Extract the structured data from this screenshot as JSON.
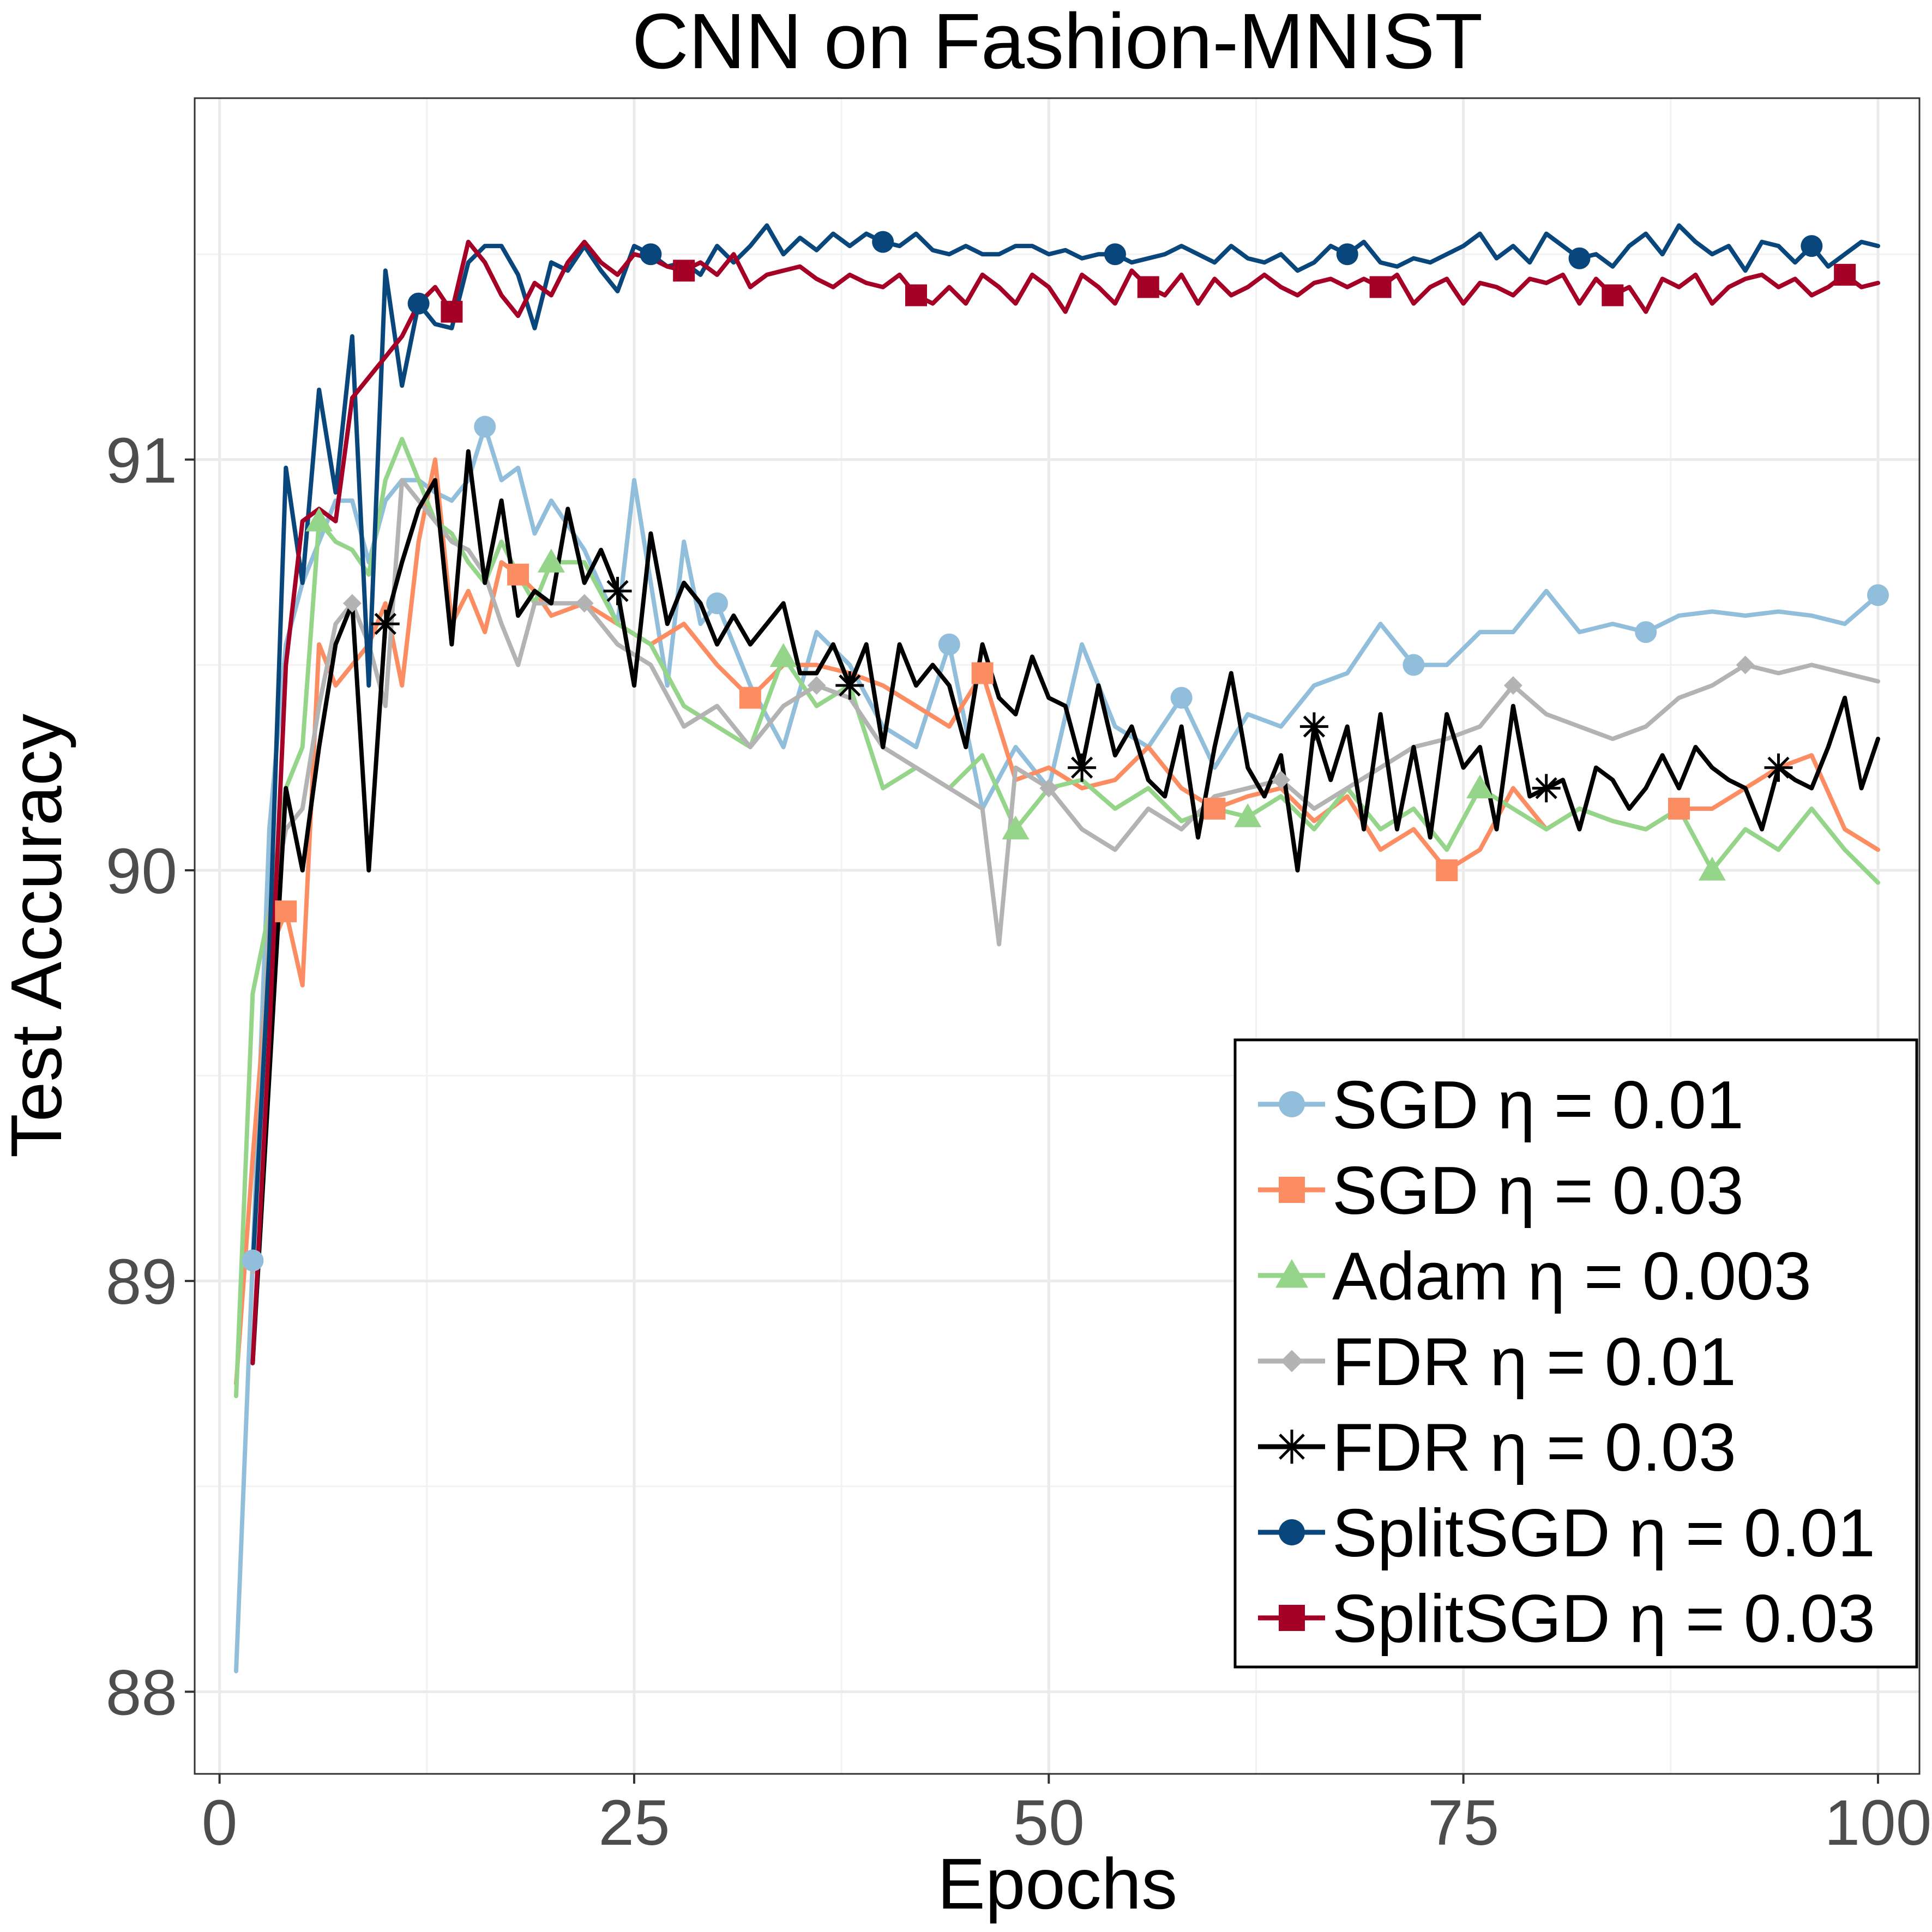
{
  "chart_data": {
    "type": "line",
    "title": "CNN on Fashion-MNIST",
    "xlabel": "Epochs",
    "ylabel": "Test Accuracy",
    "xlim": [
      -1.5,
      102.5
    ],
    "ylim": [
      87.8,
      91.88
    ],
    "x_ticks": [
      0,
      25,
      50,
      75,
      100
    ],
    "x_tick_labels": [
      "0",
      "25",
      "50",
      "75",
      "100"
    ],
    "y_ticks": [
      88,
      89,
      90,
      91
    ],
    "y_tick_labels": [
      "88",
      "89",
      "90",
      "91"
    ],
    "grid": true,
    "legend_position": "bottom-right",
    "series": [
      {
        "name": "SGD η = 0.01",
        "color": "#91BFDB",
        "marker": "circle",
        "x": [
          1,
          2,
          3,
          4,
          5,
          6,
          7,
          8,
          9,
          10,
          11,
          12,
          13,
          14,
          15,
          16,
          17,
          18,
          19,
          20,
          22,
          24,
          25,
          26,
          27,
          28,
          29,
          30,
          32,
          34,
          36,
          38,
          40,
          42,
          44,
          46,
          48,
          50,
          52,
          54,
          56,
          58,
          60,
          62,
          64,
          66,
          68,
          70,
          72,
          74,
          76,
          78,
          80,
          82,
          84,
          86,
          88,
          90,
          92,
          94,
          96,
          98,
          100
        ],
        "values": [
          88.05,
          89.05,
          90.1,
          90.55,
          90.7,
          90.8,
          90.9,
          90.9,
          90.75,
          90.9,
          90.95,
          90.95,
          90.92,
          90.9,
          90.95,
          91.08,
          90.95,
          90.98,
          90.82,
          90.9,
          90.78,
          90.6,
          90.95,
          90.7,
          90.45,
          90.8,
          90.6,
          90.65,
          90.45,
          90.3,
          90.58,
          90.5,
          90.35,
          90.3,
          90.55,
          90.15,
          90.3,
          90.2,
          90.55,
          90.35,
          90.3,
          90.42,
          90.25,
          90.38,
          90.35,
          90.45,
          90.48,
          90.6,
          90.5,
          90.5,
          90.58,
          90.58,
          90.68,
          90.58,
          90.6,
          90.58,
          90.62,
          90.63,
          90.62,
          90.63,
          90.62,
          90.6,
          90.67
        ],
        "marker_x": [
          2,
          16,
          30,
          44,
          58,
          72,
          86,
          100
        ]
      },
      {
        "name": "SGD η = 0.03",
        "color": "#FC8D62",
        "marker": "square",
        "x": [
          1,
          2,
          3,
          4,
          5,
          6,
          7,
          8,
          9,
          10,
          11,
          12,
          13,
          14,
          15,
          16,
          17,
          18,
          19,
          20,
          22,
          24,
          26,
          28,
          30,
          32,
          34,
          36,
          38,
          40,
          42,
          44,
          46,
          48,
          50,
          52,
          54,
          56,
          58,
          60,
          62,
          64,
          66,
          68,
          70,
          72,
          74,
          76,
          78,
          80,
          82,
          84,
          86,
          88,
          90,
          92,
          94,
          96,
          98,
          100
        ],
        "values": [
          88.75,
          89.3,
          89.8,
          89.9,
          89.72,
          90.55,
          90.45,
          90.5,
          90.55,
          90.65,
          90.45,
          90.8,
          91.0,
          90.6,
          90.68,
          90.58,
          90.75,
          90.72,
          90.68,
          90.62,
          90.65,
          90.6,
          90.55,
          90.6,
          90.5,
          90.42,
          90.5,
          90.5,
          90.48,
          90.45,
          90.4,
          90.35,
          90.48,
          90.22,
          90.25,
          90.2,
          90.22,
          90.3,
          90.2,
          90.15,
          90.18,
          90.2,
          90.12,
          90.18,
          90.05,
          90.1,
          90.0,
          90.05,
          90.2,
          90.1,
          90.15,
          90.12,
          90.1,
          90.15,
          90.15,
          90.2,
          90.25,
          90.28,
          90.1,
          90.05
        ],
        "marker_x": [
          4,
          18,
          32,
          46,
          60,
          74,
          88
        ]
      },
      {
        "name": "Adam η = 0.003",
        "color": "#95D58A",
        "marker": "triangle",
        "x": [
          1,
          2,
          3,
          4,
          5,
          6,
          7,
          8,
          9,
          10,
          11,
          12,
          13,
          14,
          15,
          16,
          17,
          18,
          19,
          20,
          22,
          24,
          26,
          28,
          30,
          32,
          34,
          36,
          38,
          40,
          42,
          44,
          46,
          48,
          50,
          52,
          54,
          56,
          58,
          60,
          62,
          64,
          66,
          68,
          70,
          72,
          74,
          76,
          78,
          80,
          82,
          84,
          86,
          88,
          90,
          92,
          94,
          96,
          98,
          100
        ],
        "values": [
          88.72,
          89.7,
          89.9,
          90.2,
          90.3,
          90.85,
          90.8,
          90.78,
          90.72,
          90.95,
          91.05,
          90.95,
          90.85,
          90.82,
          90.75,
          90.7,
          90.8,
          90.72,
          90.65,
          90.75,
          90.75,
          90.6,
          90.55,
          90.4,
          90.35,
          90.3,
          90.52,
          90.4,
          90.45,
          90.2,
          90.25,
          90.2,
          90.28,
          90.1,
          90.2,
          90.22,
          90.15,
          90.2,
          90.12,
          90.15,
          90.13,
          90.18,
          90.1,
          90.2,
          90.1,
          90.15,
          90.05,
          90.2,
          90.15,
          90.1,
          90.15,
          90.12,
          90.1,
          90.15,
          90.0,
          90.1,
          90.05,
          90.15,
          90.05,
          89.97
        ],
        "marker_x": [
          6,
          20,
          34,
          48,
          62,
          76,
          90
        ]
      },
      {
        "name": "FDR η = 0.01",
        "color": "#B3B3B3",
        "marker": "diamond",
        "x": [
          2,
          3,
          4,
          5,
          6,
          7,
          8,
          9,
          10,
          11,
          12,
          13,
          14,
          15,
          16,
          17,
          18,
          19,
          20,
          22,
          24,
          26,
          28,
          30,
          32,
          34,
          36,
          38,
          40,
          42,
          44,
          46,
          47,
          48,
          50,
          52,
          54,
          56,
          58,
          60,
          62,
          64,
          66,
          68,
          70,
          72,
          74,
          76,
          78,
          80,
          82,
          84,
          86,
          88,
          90,
          92,
          94,
          96,
          98,
          100
        ],
        "values": [
          89.02,
          89.9,
          90.1,
          90.15,
          90.4,
          90.6,
          90.65,
          90.55,
          90.4,
          90.95,
          90.9,
          90.85,
          90.8,
          90.78,
          90.72,
          90.6,
          90.5,
          90.65,
          90.65,
          90.65,
          90.55,
          90.5,
          90.35,
          90.4,
          90.3,
          90.4,
          90.45,
          90.42,
          90.3,
          90.25,
          90.2,
          90.15,
          89.82,
          90.25,
          90.2,
          90.1,
          90.05,
          90.15,
          90.1,
          90.18,
          90.2,
          90.22,
          90.15,
          90.2,
          90.25,
          90.3,
          90.32,
          90.35,
          90.45,
          90.38,
          90.35,
          90.32,
          90.35,
          90.42,
          90.45,
          90.5,
          90.48,
          90.5,
          90.48,
          90.46
        ],
        "marker_x": [
          8,
          22,
          36,
          50,
          64,
          78,
          92
        ]
      },
      {
        "name": "FDR η = 0.03",
        "color": "#000000",
        "marker": "asterisk",
        "x": [
          2,
          3,
          4,
          5,
          6,
          7,
          8,
          9,
          10,
          11,
          12,
          13,
          14,
          15,
          16,
          17,
          18,
          19,
          20,
          21,
          22,
          23,
          24,
          25,
          26,
          27,
          28,
          29,
          30,
          31,
          32,
          33,
          34,
          35,
          36,
          37,
          38,
          39,
          40,
          41,
          42,
          43,
          44,
          45,
          46,
          47,
          48,
          49,
          50,
          51,
          52,
          53,
          54,
          55,
          56,
          57,
          58,
          59,
          60,
          61,
          62,
          63,
          64,
          65,
          66,
          67,
          68,
          69,
          70,
          71,
          72,
          73,
          74,
          75,
          76,
          77,
          78,
          79,
          80,
          81,
          82,
          83,
          84,
          85,
          86,
          87,
          88,
          89,
          90,
          91,
          92,
          93,
          94,
          95,
          96,
          97,
          98,
          99,
          100
        ],
        "values": [
          88.8,
          89.5,
          90.2,
          90.0,
          90.3,
          90.55,
          90.65,
          90.0,
          90.6,
          90.75,
          90.88,
          90.95,
          90.55,
          91.02,
          90.7,
          90.9,
          90.62,
          90.68,
          90.65,
          90.88,
          90.7,
          90.78,
          90.68,
          90.45,
          90.82,
          90.6,
          90.7,
          90.65,
          90.55,
          90.62,
          90.55,
          90.6,
          90.65,
          90.48,
          90.48,
          90.55,
          90.45,
          90.55,
          90.3,
          90.55,
          90.45,
          90.5,
          90.45,
          90.3,
          90.55,
          90.42,
          90.38,
          90.52,
          90.42,
          90.4,
          90.25,
          90.45,
          90.28,
          90.35,
          90.22,
          90.18,
          90.35,
          90.08,
          90.3,
          90.48,
          90.25,
          90.18,
          90.28,
          90.0,
          90.35,
          90.22,
          90.35,
          90.1,
          90.38,
          90.1,
          90.3,
          90.08,
          90.38,
          90.25,
          90.3,
          90.1,
          90.4,
          90.18,
          90.2,
          90.22,
          90.1,
          90.25,
          90.22,
          90.15,
          90.2,
          90.28,
          90.2,
          90.3,
          90.25,
          90.22,
          90.2,
          90.1,
          90.25,
          90.22,
          90.2,
          90.3,
          90.42,
          90.2,
          90.32
        ],
        "marker_x": [
          10,
          24,
          38,
          52,
          66,
          80,
          94
        ]
      },
      {
        "name": "SplitSGD η = 0.01",
        "color": "#08467B",
        "marker": "circle",
        "x": [
          2,
          3,
          4,
          5,
          6,
          7,
          8,
          9,
          10,
          11,
          12,
          13,
          14,
          15,
          16,
          17,
          18,
          19,
          20,
          21,
          22,
          23,
          24,
          25,
          26,
          27,
          28,
          29,
          30,
          31,
          32,
          33,
          34,
          35,
          36,
          37,
          38,
          39,
          40,
          41,
          42,
          43,
          44,
          45,
          46,
          47,
          48,
          49,
          50,
          51,
          52,
          53,
          54,
          55,
          56,
          57,
          58,
          59,
          60,
          61,
          62,
          63,
          64,
          65,
          66,
          67,
          68,
          69,
          70,
          71,
          72,
          73,
          74,
          75,
          76,
          77,
          78,
          79,
          80,
          81,
          82,
          83,
          84,
          85,
          86,
          87,
          88,
          89,
          90,
          91,
          92,
          93,
          94,
          95,
          96,
          97,
          98,
          99,
          100
        ],
        "values": [
          89.03,
          89.8,
          90.98,
          90.7,
          91.17,
          90.92,
          91.3,
          90.45,
          91.46,
          91.18,
          91.38,
          91.33,
          91.32,
          91.48,
          91.52,
          91.52,
          91.45,
          91.32,
          91.48,
          91.46,
          91.52,
          91.46,
          91.41,
          91.52,
          91.5,
          91.47,
          91.48,
          91.45,
          91.52,
          91.48,
          91.52,
          91.57,
          91.5,
          91.54,
          91.51,
          91.55,
          91.52,
          91.55,
          91.53,
          91.52,
          91.55,
          91.51,
          91.5,
          91.52,
          91.5,
          91.5,
          91.52,
          91.52,
          91.5,
          91.51,
          91.49,
          91.5,
          91.5,
          91.48,
          91.49,
          91.5,
          91.52,
          91.5,
          91.48,
          91.52,
          91.49,
          91.48,
          91.5,
          91.46,
          91.48,
          91.52,
          91.5,
          91.53,
          91.48,
          91.47,
          91.49,
          91.48,
          91.5,
          91.52,
          91.55,
          91.49,
          91.52,
          91.48,
          91.55,
          91.52,
          91.49,
          91.5,
          91.47,
          91.52,
          91.55,
          91.5,
          91.57,
          91.53,
          91.5,
          91.52,
          91.46,
          91.53,
          91.52,
          91.48,
          91.52,
          91.47,
          91.5,
          91.53,
          91.52
        ],
        "marker_x": [
          12,
          26,
          40,
          54,
          68,
          82,
          96
        ]
      },
      {
        "name": "SplitSGD η = 0.03",
        "color": "#A50026",
        "marker": "square",
        "x": [
          2,
          3,
          4,
          5,
          6,
          7,
          8,
          9,
          10,
          11,
          12,
          13,
          14,
          15,
          16,
          17,
          18,
          19,
          20,
          21,
          22,
          23,
          24,
          25,
          26,
          27,
          28,
          29,
          30,
          31,
          32,
          33,
          34,
          35,
          36,
          37,
          38,
          39,
          40,
          41,
          42,
          43,
          44,
          45,
          46,
          47,
          48,
          49,
          50,
          51,
          52,
          53,
          54,
          55,
          56,
          57,
          58,
          59,
          60,
          61,
          62,
          63,
          64,
          65,
          66,
          67,
          68,
          69,
          70,
          71,
          72,
          73,
          74,
          75,
          76,
          77,
          78,
          79,
          80,
          81,
          82,
          83,
          84,
          85,
          86,
          87,
          88,
          89,
          90,
          91,
          92,
          93,
          94,
          95,
          96,
          97,
          98,
          99,
          100
        ],
        "values": [
          88.8,
          89.6,
          90.5,
          90.85,
          90.88,
          90.85,
          91.15,
          91.2,
          91.25,
          91.3,
          91.38,
          91.42,
          91.36,
          91.53,
          91.48,
          91.4,
          91.35,
          91.43,
          91.4,
          91.48,
          91.53,
          91.48,
          91.45,
          91.5,
          91.49,
          91.47,
          91.46,
          91.48,
          91.45,
          91.5,
          91.42,
          91.45,
          91.46,
          91.47,
          91.44,
          91.42,
          91.45,
          91.43,
          91.42,
          91.45,
          91.4,
          91.38,
          91.42,
          91.38,
          91.45,
          91.42,
          91.38,
          91.45,
          91.42,
          91.36,
          91.45,
          91.42,
          91.38,
          91.46,
          91.42,
          91.4,
          91.45,
          91.38,
          91.44,
          91.4,
          91.42,
          91.45,
          91.42,
          91.4,
          91.43,
          91.44,
          91.42,
          91.44,
          91.42,
          91.45,
          91.38,
          91.42,
          91.44,
          91.38,
          91.43,
          91.42,
          91.4,
          91.44,
          91.43,
          91.45,
          91.38,
          91.44,
          91.4,
          91.42,
          91.36,
          91.44,
          91.42,
          91.45,
          91.38,
          91.42,
          91.44,
          91.45,
          91.42,
          91.44,
          91.4,
          91.42,
          91.45,
          91.42,
          91.43
        ],
        "marker_x": [
          14,
          28,
          42,
          56,
          70,
          84,
          98
        ]
      }
    ]
  }
}
